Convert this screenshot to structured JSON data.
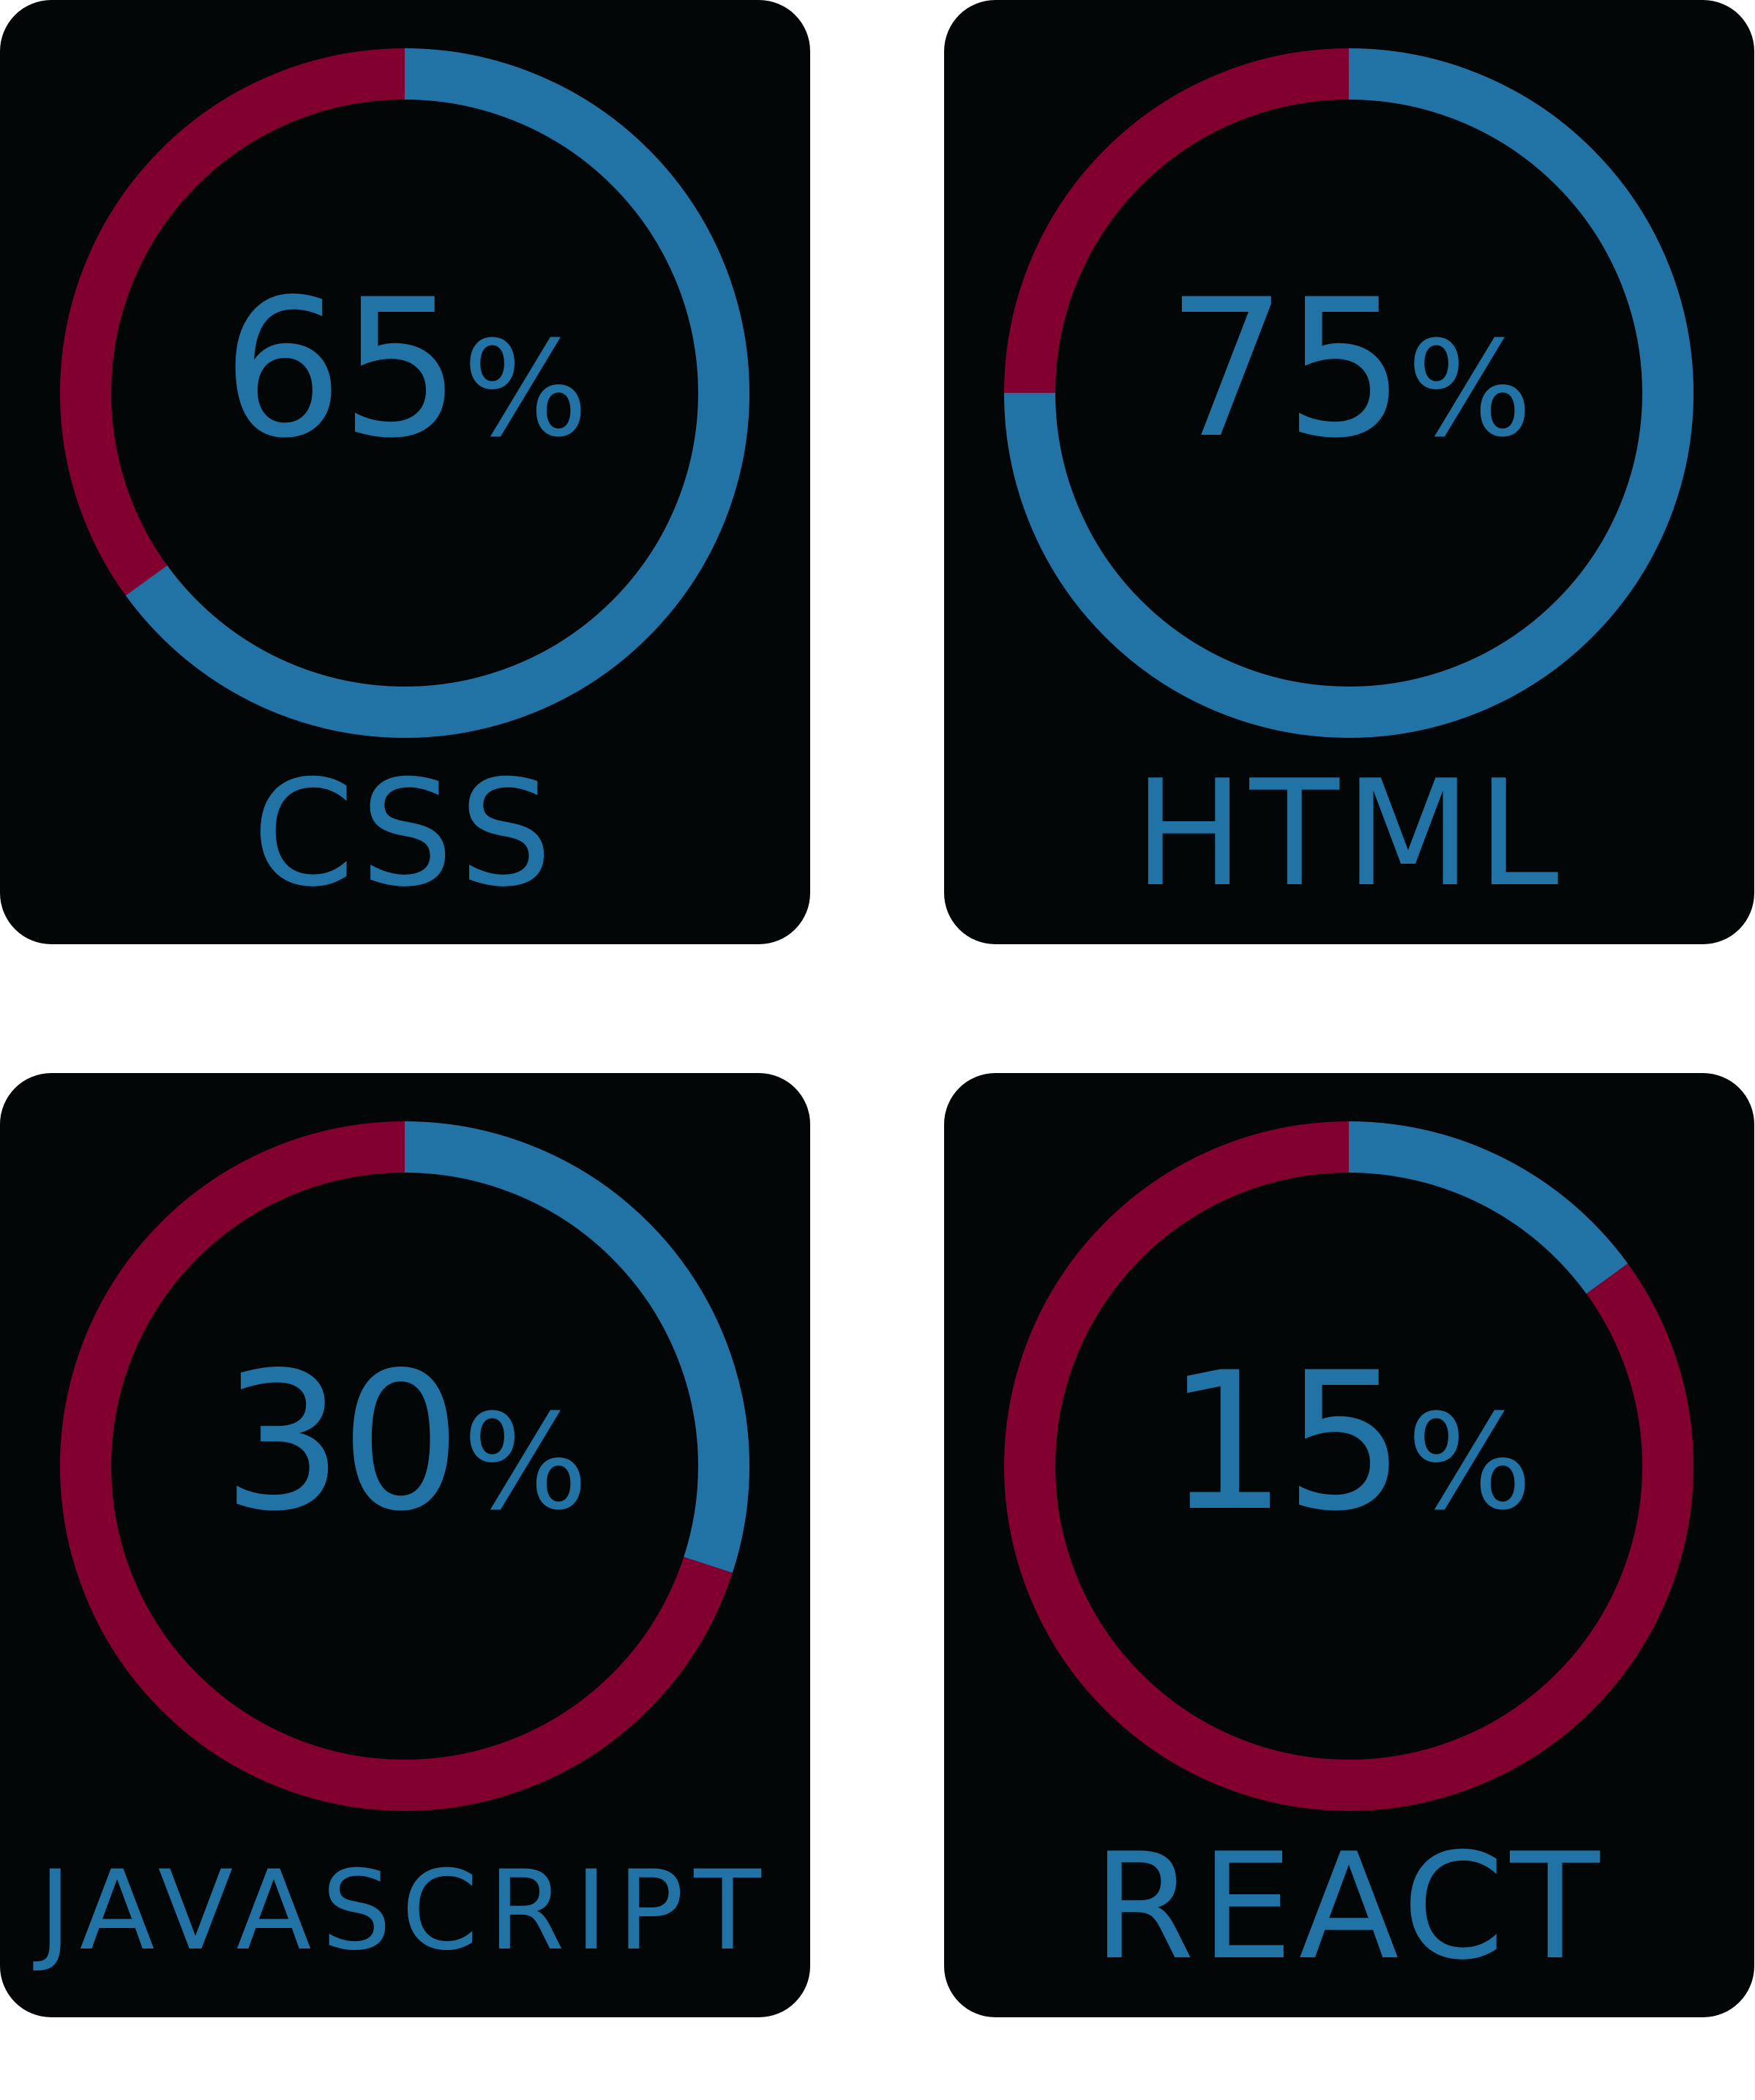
{
  "colors": {
    "filled": "#2273a5",
    "remaining": "#810030",
    "card_background": "#030607",
    "text": "#2273a5"
  },
  "chart_data": [
    {
      "type": "pie",
      "label": "CSS",
      "value": 65,
      "display": "65",
      "unit": "%"
    },
    {
      "type": "pie",
      "label": "HTML",
      "value": 75,
      "display": "75",
      "unit": "%"
    },
    {
      "type": "pie",
      "label": "JAVASCRIPT",
      "value": 30,
      "display": "30",
      "unit": "%"
    },
    {
      "type": "pie",
      "label": "REACT",
      "value": 15,
      "display": "15",
      "unit": "%"
    }
  ]
}
